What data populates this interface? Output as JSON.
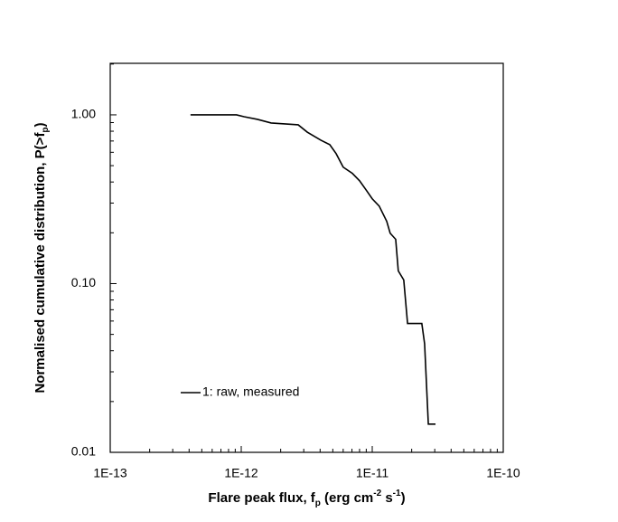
{
  "chart_data": {
    "type": "line",
    "xlabel": [
      {
        "text": "Flare peak flux, f"
      },
      {
        "text": "p",
        "baseline": "sub"
      },
      {
        "text": " (erg cm"
      },
      {
        "text": "-2",
        "baseline": "super"
      },
      {
        "text": " s"
      },
      {
        "text": "-1",
        "baseline": "super"
      },
      {
        "text": ")"
      }
    ],
    "ylabel": [
      {
        "text": "Normalised cumulative distribution, P(>f"
      },
      {
        "text": "p",
        "baseline": "sub"
      },
      {
        "text": ")"
      }
    ],
    "x": [
      4.1e-13,
      9.2e-13,
      1.05e-12,
      1.33e-12,
      1.69e-12,
      2.72e-12,
      3.19e-12,
      4.05e-12,
      4.74e-12,
      5.3e-12,
      6e-12,
      7.05e-12,
      8e-12,
      8.95e-12,
      1e-11,
      1.13e-11,
      1.29e-11,
      1.37e-11,
      1.51e-11,
      1.58e-11,
      1.74e-11,
      1.86e-11,
      2.39e-11,
      2.51e-11,
      2.68e-11,
      3.04e-11
    ],
    "series": [
      {
        "name": "1: raw, measured",
        "color": "#000000",
        "values": [
          1.0,
          1.0,
          0.975,
          0.94,
          0.895,
          0.873,
          0.79,
          0.708,
          0.666,
          0.589,
          0.49,
          0.45,
          0.407,
          0.36,
          0.318,
          0.288,
          0.234,
          0.199,
          0.183,
          0.119,
          0.105,
          0.058,
          0.058,
          0.044,
          0.0147,
          0.0147
        ]
      }
    ],
    "xscale": "log",
    "yscale": "log",
    "minor_ticks": true,
    "xlim": [
      1e-13,
      1e-10
    ],
    "xticks": [
      {
        "value": 1e-13,
        "label": "1E-13"
      },
      {
        "value": 1e-12,
        "label": "1E-12"
      },
      {
        "value": 1e-11,
        "label": "1E-11"
      },
      {
        "value": 1e-10,
        "label": "1E-10"
      }
    ],
    "ylim": [
      0.01,
      2.02
    ],
    "yticks": [
      0.01,
      {
        "value": 0.1,
        "label": "0.10"
      },
      {
        "value": 1,
        "label": "1.00"
      }
    ],
    "grid": false,
    "legend": "lower left"
  }
}
